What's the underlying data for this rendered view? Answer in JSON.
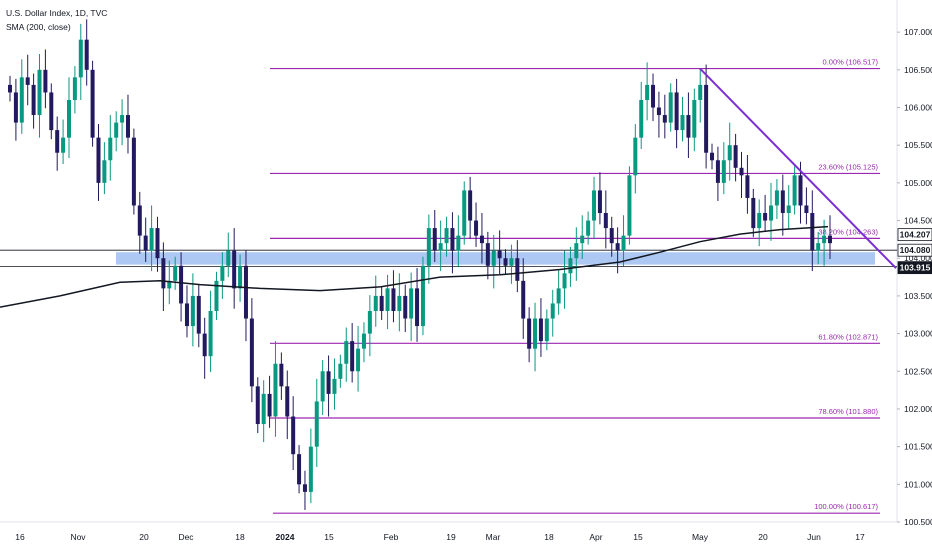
{
  "legend": {
    "symbol": "U.S. Dollar Index, 1D, TVC",
    "indicator": "SMA (200, close)"
  },
  "colors": {
    "up": "#089981",
    "down": "#22195e",
    "fib": "#9c27b0",
    "trendline": "#7b2fd3",
    "zone": "#a9c6f2",
    "sma": "#131722"
  },
  "chart_data": {
    "type": "candlestick",
    "ylim": [
      100.5,
      107.4
    ],
    "y_ticks": [
      "107.000",
      "106.500",
      "106.000",
      "105.500",
      "105.000",
      "104.500",
      "104.000",
      "103.500",
      "103.000",
      "102.500",
      "102.000",
      "101.500",
      "101.000",
      "100.500"
    ],
    "x_ticks": [
      "16",
      "Nov",
      "20",
      "Dec",
      "18",
      "2024",
      "15",
      "Feb",
      "19",
      "Mar",
      "18",
      "Apr",
      "15",
      "May",
      "20",
      "Jun",
      "17"
    ],
    "price_badges": [
      "104.207",
      "104.080",
      "103.915"
    ],
    "fib_levels": [
      {
        "label": "0.00% (106.517)",
        "value": 106.517
      },
      {
        "label": "23.60% (105.125)",
        "value": 105.125
      },
      {
        "label": "38.20% (104.263)",
        "value": 104.263
      },
      {
        "label": "61.80% (102.871)",
        "value": 102.871
      },
      {
        "label": "78.60% (101.880)",
        "value": 101.88
      },
      {
        "label": "100.00% (100.617)",
        "value": 100.617
      }
    ],
    "support_zone": [
      103.915,
      104.08
    ],
    "trendline": [
      [
        106.517,
        104.0
      ]
    ],
    "closes": [
      106.2,
      105.8,
      106.4,
      106.3,
      105.9,
      106.5,
      106.2,
      105.7,
      105.4,
      105.6,
      106.1,
      106.4,
      106.9,
      106.5,
      105.6,
      105.0,
      105.3,
      105.6,
      105.8,
      105.9,
      105.6,
      104.7,
      104.3,
      104.1,
      104.4,
      104.0,
      103.6,
      103.7,
      103.9,
      103.4,
      103.1,
      103.5,
      103.0,
      102.7,
      103.3,
      103.7,
      103.9,
      104.1,
      103.6,
      103.9,
      103.2,
      102.3,
      101.8,
      102.2,
      101.9,
      102.6,
      102.3,
      101.9,
      101.4,
      101.0,
      100.9,
      101.5,
      102.1,
      102.5,
      102.2,
      102.4,
      102.6,
      102.9,
      102.5,
      102.8,
      103.0,
      103.3,
      103.5,
      103.3,
      103.6,
      103.3,
      103.5,
      103.2,
      103.6,
      103.1,
      103.9,
      104.4,
      104.1,
      104.2,
      104.4,
      104.1,
      104.3,
      104.9,
      104.5,
      104.3,
      104.2,
      103.9,
      104.1,
      104.0,
      103.9,
      104.0,
      103.7,
      103.2,
      102.8,
      103.2,
      102.9,
      103.2,
      103.4,
      103.6,
      103.8,
      104.0,
      104.2,
      104.3,
      104.5,
      104.9,
      104.6,
      104.4,
      104.2,
      104.1,
      104.3,
      105.1,
      105.6,
      106.1,
      106.3,
      106.0,
      105.9,
      105.8,
      106.2,
      105.7,
      105.9,
      105.6,
      106.1,
      106.3,
      105.4,
      105.3,
      105.0,
      105.3,
      105.5,
      105.2,
      105.1,
      104.8,
      104.4,
      104.6,
      104.5,
      104.7,
      104.9,
      104.6,
      104.7,
      105.1,
      104.7,
      104.6,
      104.1,
      104.2,
      104.3,
      104.2
    ]
  }
}
